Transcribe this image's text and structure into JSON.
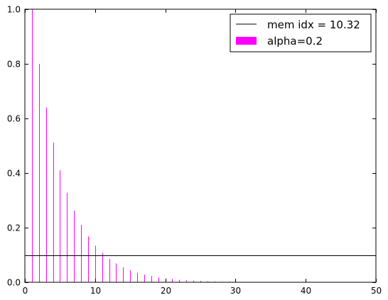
{
  "chart_data": {
    "type": "bar",
    "title": "",
    "xlabel": "",
    "ylabel": "",
    "xlim": [
      0,
      50
    ],
    "ylim": [
      0,
      1.0
    ],
    "grid": false,
    "legend_placement": "top-right",
    "x_ticks": [
      "0",
      "10",
      "20",
      "30",
      "40",
      "50"
    ],
    "y_ticks": [
      "0.0",
      "0.2",
      "0.4",
      "0.6",
      "0.8",
      "1.0"
    ],
    "series": [
      {
        "name": "alpha=0.2",
        "color": "#ff00ff",
        "style": "stem",
        "x": [
          1,
          2,
          3,
          4,
          5,
          6,
          7,
          8,
          9,
          10,
          11,
          12,
          13,
          14,
          15,
          16,
          17,
          18,
          19,
          20,
          21,
          22,
          23,
          24,
          25,
          26,
          27,
          28,
          29,
          30,
          31,
          32,
          33,
          34,
          35,
          36,
          37,
          38,
          39,
          40
        ],
        "values": [
          1.0,
          0.8,
          0.64,
          0.512,
          0.41,
          0.328,
          0.262,
          0.21,
          0.168,
          0.134,
          0.107,
          0.086,
          0.069,
          0.055,
          0.044,
          0.035,
          0.028,
          0.023,
          0.018,
          0.014,
          0.012,
          0.009,
          0.007,
          0.006,
          0.005,
          0.004,
          0.003,
          0.002,
          0.002,
          0.002,
          0.001,
          0.001,
          0.001,
          0.001,
          0.001,
          0.0,
          0.0,
          0.0,
          0.0,
          0.0
        ]
      }
    ],
    "hlines": [
      {
        "name": "mem idx = 10.32",
        "y": 0.1,
        "color": "#000000"
      }
    ]
  }
}
